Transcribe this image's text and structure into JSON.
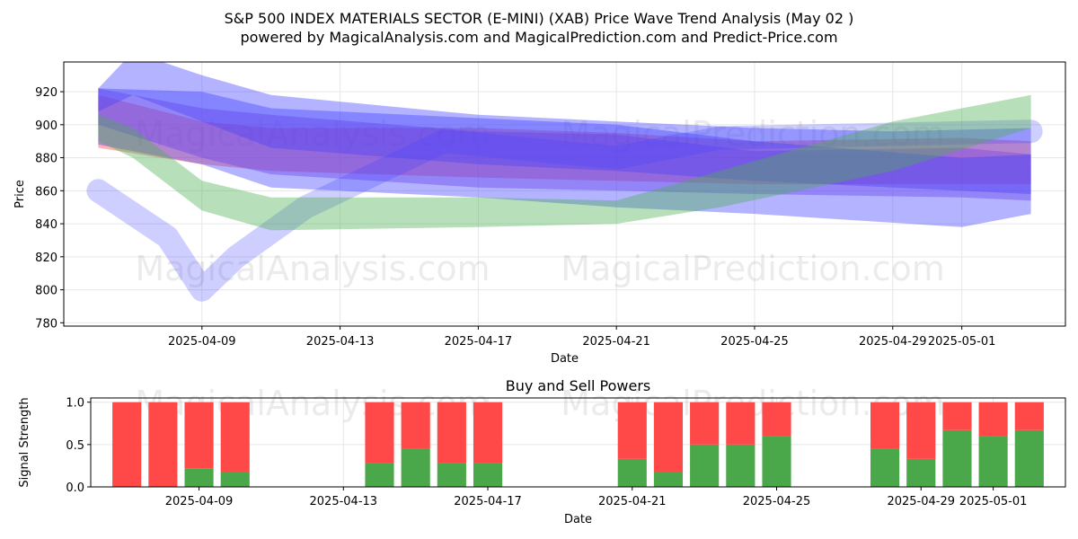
{
  "title_line1": "S&P 500 INDEX MATERIALS SECTOR (E-MINI) (XAB) Price Wave Trend Analysis (May 02 )",
  "title_line2": "powered by MagicalAnalysis.com and MagicalPrediction.com and Predict-Price.com",
  "watermarks": [
    "MagicalAnalysis.com",
    "MagicalPrediction.com"
  ],
  "chart_data": [
    {
      "type": "area",
      "xlabel": "Date",
      "ylabel": "Price",
      "ylim": [
        778,
        938
      ],
      "xlim": [
        "2025-04-05",
        "2025-05-04"
      ],
      "x_ticks": [
        "2025-04-09",
        "2025-04-13",
        "2025-04-17",
        "2025-04-21",
        "2025-04-25",
        "2025-04-29",
        "2025-05-01"
      ],
      "y_ticks": [
        780,
        800,
        820,
        840,
        860,
        880,
        900,
        920
      ],
      "grid": true,
      "colors": {
        "blue": "#4040ff",
        "green": "#4caf50",
        "red": "#ff4040",
        "purple": "#7a3ee0"
      },
      "bands": [
        {
          "color": "red",
          "dates": [
            "2025-04-06",
            "2025-04-09",
            "2025-04-11",
            "2025-04-17",
            "2025-04-21",
            "2025-04-25",
            "2025-05-01",
            "2025-05-03"
          ],
          "upper": [
            918,
            902,
            898,
            898,
            895,
            890,
            892,
            890
          ],
          "lower": [
            886,
            876,
            872,
            868,
            866,
            864,
            864,
            864
          ]
        },
        {
          "color": "blue",
          "dates": [
            "2025-04-06",
            "2025-04-07",
            "2025-04-09",
            "2025-04-11",
            "2025-04-17",
            "2025-04-21",
            "2025-04-25",
            "2025-04-29",
            "2025-05-03"
          ],
          "upper": [
            922,
            944,
            930,
            918,
            906,
            902,
            898,
            896,
            898
          ],
          "lower": [
            908,
            918,
            902,
            886,
            876,
            872,
            866,
            862,
            858
          ]
        },
        {
          "color": "purple",
          "dates": [
            "2025-04-06",
            "2025-04-09",
            "2025-04-11",
            "2025-04-17",
            "2025-04-21",
            "2025-04-25",
            "2025-05-01",
            "2025-05-03"
          ],
          "upper": [
            922,
            910,
            906,
            896,
            894,
            884,
            886,
            882
          ],
          "lower": [
            900,
            880,
            870,
            862,
            860,
            858,
            856,
            854
          ]
        },
        {
          "color": "blue",
          "dates": [
            "2025-04-06",
            "2025-04-09",
            "2025-04-11",
            "2025-04-17",
            "2025-04-21",
            "2025-04-25",
            "2025-05-01",
            "2025-05-03"
          ],
          "upper": [
            922,
            920,
            910,
            904,
            900,
            890,
            880,
            882
          ],
          "lower": [
            888,
            876,
            862,
            856,
            850,
            846,
            838,
            846
          ]
        },
        {
          "color": "blue",
          "dates": [
            "2025-04-06",
            "2025-04-08",
            "2025-04-09",
            "2025-04-10",
            "2025-04-12",
            "2025-04-16",
            "2025-04-21",
            "2025-04-24",
            "2025-05-03"
          ],
          "upper": [
            860,
            832,
            800,
            820,
            850,
            890,
            880,
            892,
            896
          ]
        },
        {
          "color": "green",
          "dates": [
            "2025-04-06",
            "2025-04-07",
            "2025-04-09",
            "2025-04-11",
            "2025-04-17",
            "2025-04-21",
            "2025-04-24",
            "2025-04-29",
            "2025-05-03"
          ],
          "upper": [
            906,
            898,
            866,
            856,
            856,
            854,
            872,
            902,
            918
          ],
          "lower": [
            890,
            880,
            848,
            836,
            838,
            840,
            850,
            872,
            898
          ]
        }
      ],
      "legend": null
    },
    {
      "type": "bar",
      "title": "Buy and Sell Powers",
      "xlabel": "Date",
      "ylabel": "Signal Strength",
      "ylim": [
        0,
        1.05
      ],
      "y_ticks": [
        0.0,
        0.5,
        1.0
      ],
      "x_ticks": [
        "2025-04-09",
        "2025-04-13",
        "2025-04-17",
        "2025-04-21",
        "2025-04-25",
        "2025-04-29",
        "2025-05-01"
      ],
      "grid": true,
      "colors": {
        "buy": "#4aa84a",
        "sell": "#ff4848"
      },
      "dates": [
        "2025-04-07",
        "2025-04-08",
        "2025-04-09",
        "2025-04-10",
        "2025-04-14",
        "2025-04-15",
        "2025-04-16",
        "2025-04-17",
        "2025-04-21",
        "2025-04-22",
        "2025-04-23",
        "2025-04-24",
        "2025-04-25",
        "2025-04-28",
        "2025-04-29",
        "2025-04-30",
        "2025-05-01",
        "2025-05-02"
      ],
      "buy": [
        0.0,
        0.0,
        0.22,
        0.17,
        0.28,
        0.45,
        0.28,
        0.28,
        0.33,
        0.17,
        0.5,
        0.5,
        0.6,
        0.45,
        0.33,
        0.67,
        0.6,
        0.67
      ],
      "sell": [
        1.0,
        1.0,
        0.78,
        0.83,
        0.72,
        0.55,
        0.72,
        0.72,
        0.67,
        0.83,
        0.5,
        0.5,
        0.4,
        0.55,
        0.67,
        0.33,
        0.4,
        0.33
      ]
    }
  ]
}
